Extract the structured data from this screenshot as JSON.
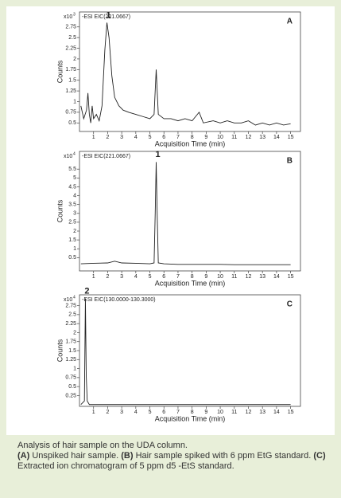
{
  "chart_data": [
    {
      "type": "line",
      "panel": "A",
      "header": "-ESI EIC(221.0667)",
      "scale_label": "x10",
      "scale_exponent": "3",
      "peak_label": "1",
      "xlabel": "Acquisition Time (min)",
      "ylabel": "Counts",
      "grid": false,
      "x": [
        0.1,
        0.3,
        0.5,
        0.6,
        0.7,
        0.8,
        0.9,
        1.0,
        1.2,
        1.4,
        1.6,
        1.8,
        1.95,
        2.1,
        2.3,
        2.5,
        2.8,
        3.1,
        3.5,
        4.0,
        4.5,
        5.0,
        5.3,
        5.45,
        5.6,
        6.0,
        6.5,
        7.0,
        7.5,
        8.0,
        8.5,
        8.8,
        9.5,
        10,
        10.5,
        11,
        11.5,
        12,
        12.5,
        13,
        13.5,
        14,
        14.5,
        15
      ],
      "series": [
        {
          "color": "#222222",
          "values": [
            0.9,
            0.6,
            0.8,
            1.2,
            0.7,
            0.5,
            0.9,
            0.6,
            0.7,
            0.55,
            0.9,
            2.2,
            2.85,
            2.5,
            1.6,
            1.1,
            0.9,
            0.8,
            0.75,
            0.7,
            0.65,
            0.6,
            0.7,
            1.75,
            0.7,
            0.6,
            0.6,
            0.55,
            0.6,
            0.55,
            0.75,
            0.5,
            0.55,
            0.5,
            0.55,
            0.5,
            0.5,
            0.55,
            0.45,
            0.5,
            0.45,
            0.5,
            0.45,
            0.48
          ]
        }
      ],
      "xlim": [
        0,
        15.7
      ],
      "xticks": [
        1,
        2,
        3,
        4,
        5,
        6,
        7,
        8,
        9,
        10,
        11,
        12,
        13,
        14,
        15
      ],
      "ylim": [
        0.3,
        3.1
      ],
      "yticks": [
        0.5,
        0.75,
        1,
        1.25,
        1.5,
        1.75,
        2,
        2.25,
        2.5,
        2.75
      ]
    },
    {
      "type": "line",
      "panel": "B",
      "header": "-ESI EIC(221.0667)",
      "scale_label": "x10",
      "scale_exponent": "4",
      "peak_label": "1",
      "xlabel": "Acquisition Time (min)",
      "ylabel": "Counts",
      "grid": false,
      "x": [
        0.1,
        1,
        2,
        2.5,
        3,
        4,
        5,
        5.3,
        5.38,
        5.45,
        5.52,
        5.6,
        6,
        7,
        8,
        9,
        10,
        11,
        12,
        13,
        14,
        15
      ],
      "series": [
        {
          "color": "#222222",
          "values": [
            0.15,
            0.18,
            0.2,
            0.3,
            0.2,
            0.18,
            0.15,
            0.2,
            3.0,
            5.9,
            3.0,
            0.2,
            0.15,
            0.12,
            0.12,
            0.12,
            0.12,
            0.1,
            0.1,
            0.1,
            0.1,
            0.1
          ]
        }
      ],
      "xlim": [
        0,
        15.7
      ],
      "xticks": [
        1,
        2,
        3,
        4,
        5,
        6,
        7,
        8,
        9,
        10,
        11,
        12,
        13,
        14,
        15
      ],
      "ylim": [
        -0.25,
        6.5
      ],
      "yticks": [
        0.5,
        1,
        1.5,
        2,
        2.5,
        3,
        3.5,
        4,
        4.5,
        5,
        5.5
      ]
    },
    {
      "type": "line",
      "panel": "C",
      "header": "-ESI EIC(130.0000-130.3000)",
      "scale_label": "x10",
      "scale_exponent": "4",
      "peak_label": "2",
      "xlabel": "Acquisition Time (min)",
      "ylabel": "Counts",
      "grid": false,
      "x": [
        0.1,
        0.35,
        0.42,
        0.48,
        0.55,
        0.7,
        2,
        5,
        10,
        15
      ],
      "series": [
        {
          "color": "#222222",
          "values": [
            0,
            0.1,
            2.95,
            0.8,
            0.1,
            0,
            0,
            0,
            0,
            0
          ]
        }
      ],
      "xlim": [
        0,
        15.7
      ],
      "xticks": [
        1,
        2,
        3,
        4,
        5,
        6,
        7,
        8,
        9,
        10,
        11,
        12,
        13,
        14,
        15
      ],
      "ylim": [
        -0.05,
        3.05
      ],
      "yticks": [
        0.25,
        0.5,
        0.75,
        1,
        1.25,
        1.5,
        1.75,
        2,
        2.25,
        2.5,
        2.75
      ]
    }
  ],
  "caption": {
    "intro": "Analysis of hair sample on the UDA column.",
    "items": [
      {
        "label": "(A)",
        "text": "Unspiked hair sample."
      },
      {
        "label": "(B)",
        "text": "Hair sample spiked with 6 ppm EtG standard."
      },
      {
        "label": "(C)",
        "text": "Extracted ion chromatogram of 5 ppm d5 -EtS standard."
      }
    ]
  }
}
